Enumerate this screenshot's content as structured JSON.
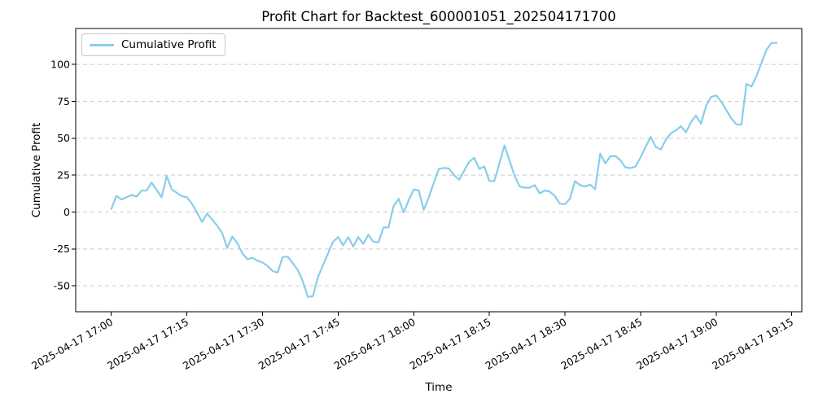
{
  "figure": {
    "title": "Profit Chart for Backtest_600001051_202504171700",
    "x_axis_label": "Time",
    "y_axis_label": "Cumulative Profit",
    "legend": {
      "position": "upper-left",
      "entries": [
        {
          "label": "Cumulative Profit",
          "color": "#87CEEB"
        }
      ]
    }
  },
  "chart_data": {
    "type": "line",
    "title": "Profit Chart for Backtest_600001051_202504171700",
    "xlabel": "Time",
    "ylabel": "Cumulative Profit",
    "legend_position": "upper-left",
    "grid": {
      "axis": "y",
      "style": "dashed",
      "color": "#cccccc"
    },
    "background": "#ffffff",
    "spine_color": "#000000",
    "y_ticks": [
      -50,
      -25,
      0,
      25,
      50,
      75,
      100
    ],
    "ylim": [
      -67.5,
      124.5
    ],
    "x_tick_labels": [
      "2025-04-17 17:00",
      "2025-04-17 17:15",
      "2025-04-17 17:30",
      "2025-04-17 17:45",
      "2025-04-17 18:00",
      "2025-04-17 18:15",
      "2025-04-17 18:30",
      "2025-04-17 18:45",
      "2025-04-17 19:00",
      "2025-04-17 19:15"
    ],
    "x_tick_minutes": [
      0,
      15,
      30,
      45,
      60,
      75,
      90,
      105,
      120,
      135
    ],
    "x_tick_rotation_deg": 30,
    "series": [
      {
        "name": "Cumulative Profit",
        "color": "#87CEEB",
        "line_width": 2.2,
        "start_time": "2025-04-17 17:00",
        "interval_minutes": 1,
        "values": [
          2,
          11,
          8.5,
          10,
          11.5,
          10.5,
          14.5,
          14.5,
          20,
          15,
          10,
          24.5,
          15.4,
          13,
          10.8,
          9.9,
          5.7,
          -0.3,
          -6.8,
          -1,
          -5,
          -9.2,
          -14.2,
          -24.3,
          -16.6,
          -21,
          -28,
          -32,
          -31,
          -33,
          -34.2,
          -36.5,
          -40,
          -41,
          -30.5,
          -30.2,
          -34.6,
          -39.2,
          -47,
          -57.5,
          -57,
          -44,
          -36,
          -28,
          -20,
          -17,
          -22.5,
          -17,
          -23.4,
          -17,
          -21.6,
          -15.4,
          -20.3,
          -20.5,
          -10.5,
          -10.4,
          4,
          9,
          -0.3,
          8,
          15.4,
          14.6,
          1.6,
          10,
          20,
          29.3,
          29.9,
          29.5,
          25,
          21.9,
          28,
          34,
          36.8,
          29.3,
          30.8,
          21,
          21,
          33,
          45.1,
          35,
          24.7,
          17.3,
          16.5,
          16.5,
          18.2,
          12.7,
          14.6,
          13.8,
          10.8,
          5.7,
          5.3,
          9,
          21,
          18.2,
          17.3,
          18.6,
          15.5,
          39.6,
          33,
          37.7,
          38,
          35,
          30.3,
          29.8,
          30.8,
          37,
          44,
          51,
          44.2,
          42.3,
          48.8,
          53.4,
          55.3,
          58.1,
          54,
          60.8,
          65.4,
          59.9,
          71.9,
          78,
          79,
          74.7,
          69.2,
          63.5,
          59.4,
          59.3,
          86.8,
          85,
          92.3,
          101,
          110,
          114.6,
          114.6
        ]
      }
    ]
  }
}
